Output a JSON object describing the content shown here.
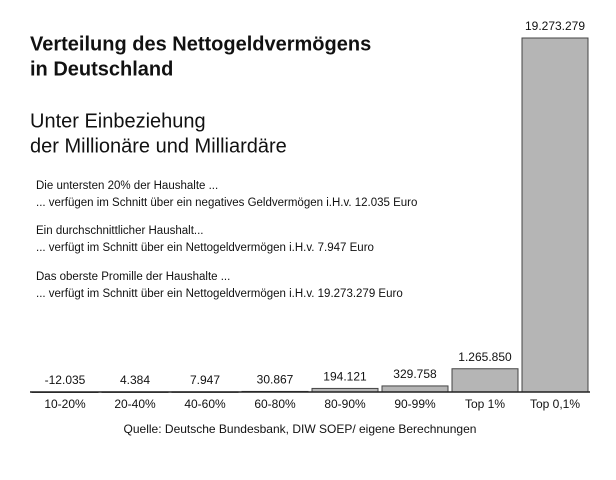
{
  "chart_data": {
    "type": "bar",
    "title": [
      "Verteilung des Nettogeldvermögens",
      "in Deutschland"
    ],
    "subtitle": [
      "Unter Einbeziehung",
      "der Millionäre und Milliardäre"
    ],
    "annotations": [
      [
        "Die untersten 20% der Haushalte ...",
        "... verfügen im Schnitt über ein negatives Geldvermögen i.H.v. 12.035 Euro"
      ],
      [
        "Ein durchschnittlicher Haushalt...",
        "... verfügt im Schnitt über ein Nettogeldvermögen i.H.v. 7.947 Euro"
      ],
      [
        "Das oberste Promille der Haushalte ...",
        "... verfügt im Schnitt über ein Nettogeldvermögen i.H.v. 19.273.279 Euro"
      ]
    ],
    "categories": [
      "10-20%",
      "20-40%",
      "40-60%",
      "60-80%",
      "80-90%",
      "90-99%",
      "Top 1%",
      "Top 0,1%"
    ],
    "values": [
      -12035,
      4384,
      7947,
      30867,
      194121,
      329758,
      1265850,
      19273279
    ],
    "value_labels": [
      "-12.035",
      "4.384",
      "7.947",
      "30.867",
      "194.121",
      "329.758",
      "1.265.850",
      "19.273.279"
    ],
    "color": "#b5b5b5",
    "source": "Quelle: Deutsche Bundesbank, DIW SOEP/ eigene Berechnungen"
  }
}
